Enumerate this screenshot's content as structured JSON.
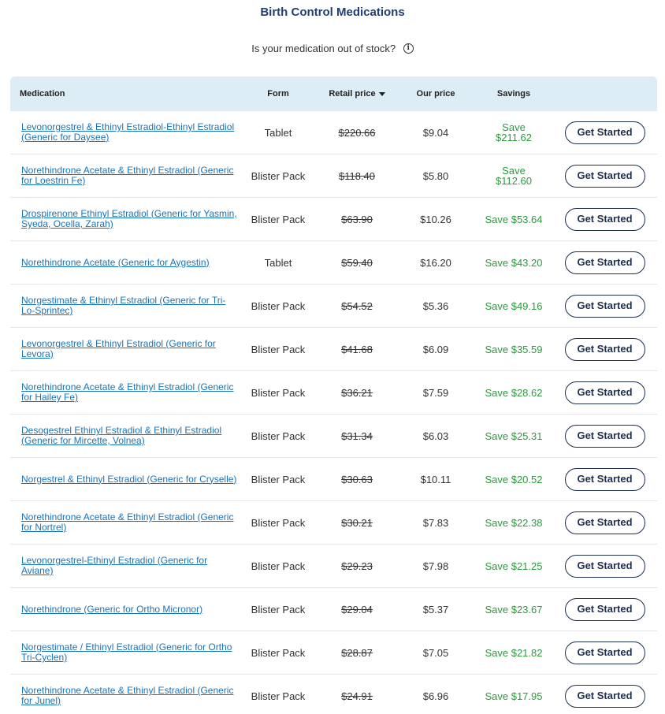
{
  "page": {
    "title": "Birth Control Medications",
    "stock_question": "Is your medication out of stock?",
    "info_icon": "info-icon"
  },
  "table": {
    "headers": {
      "medication": "Medication",
      "form": "Form",
      "retail_price": "Retail price",
      "our_price": "Our price",
      "savings": "Savings"
    },
    "sort_icon": "caret-down-icon",
    "rows": [
      {
        "name": "Levonorgestrel & Ethinyl Estradiol-Ethinyl Estradiol (Generic for Daysee)",
        "form": "Tablet",
        "retail": "$220.66",
        "our": "$9.04",
        "savings": "Save $211.62",
        "action": "Get Started"
      },
      {
        "name": "Norethindrone Acetate & Ethinyl Estradiol (Generic for Loestrin Fe)",
        "form": "Blister Pack",
        "retail": "$118.40",
        "our": "$5.80",
        "savings": "Save $112.60",
        "action": "Get Started"
      },
      {
        "name": "Drospirenone Ethinyl Estradiol (Generic for Yasmin, Syeda, Ocella, Zarah)",
        "form": "Blister Pack",
        "retail": "$63.90",
        "our": "$10.26",
        "savings": "Save $53.64",
        "action": "Get Started"
      },
      {
        "name": "Norethindrone Acetate (Generic for Aygestin)",
        "form": "Tablet",
        "retail": "$59.40",
        "our": "$16.20",
        "savings": "Save $43.20",
        "action": "Get Started"
      },
      {
        "name": "Norgestimate & Ethinyl Estradiol (Generic for Tri-Lo-Sprintec)",
        "form": "Blister Pack",
        "retail": "$54.52",
        "our": "$5.36",
        "savings": "Save $49.16",
        "action": "Get Started"
      },
      {
        "name": "Levonorgestrel & Ethinyl Estradiol (Generic for Levora)",
        "form": "Blister Pack",
        "retail": "$41.68",
        "our": "$6.09",
        "savings": "Save $35.59",
        "action": "Get Started"
      },
      {
        "name": "Norethindrone Acetate & Ethinyl Estradiol (Generic for Hailey Fe)",
        "form": "Blister Pack",
        "retail": "$36.21",
        "our": "$7.59",
        "savings": "Save $28.62",
        "action": "Get Started"
      },
      {
        "name": "Desogestrel Ethinyl Estradiol & Ethinyl Estradiol (Generic for Mircette, Volnea)",
        "form": "Blister Pack",
        "retail": "$31.34",
        "our": "$6.03",
        "savings": "Save $25.31",
        "action": "Get Started"
      },
      {
        "name": "Norgestrel & Ethinyl Estradiol (Generic for Cryselle)",
        "form": "Blister Pack",
        "retail": "$30.63",
        "our": "$10.11",
        "savings": "Save $20.52",
        "action": "Get Started"
      },
      {
        "name": "Norethindrone Acetate & Ethinyl Estradiol (Generic for Nortrel)",
        "form": "Blister Pack",
        "retail": "$30.21",
        "our": "$7.83",
        "savings": "Save $22.38",
        "action": "Get Started"
      },
      {
        "name": "Levonorgestrel-Ethinyl Estradiol (Generic for Aviane)",
        "form": "Blister Pack",
        "retail": "$29.23",
        "our": "$7.98",
        "savings": "Save $21.25",
        "action": "Get Started"
      },
      {
        "name": "Norethindrone (Generic for Ortho Micronor)",
        "form": "Blister Pack",
        "retail": "$29.04",
        "our": "$5.37",
        "savings": "Save $23.67",
        "action": "Get Started"
      },
      {
        "name": "Norgestimate / Ethinyl Estradiol (Generic for Ortho Tri-Cyclen)",
        "form": "Blister Pack",
        "retail": "$28.87",
        "our": "$7.05",
        "savings": "Save $21.82",
        "action": "Get Started"
      },
      {
        "name": "Norethindrone Acetate & Ethinyl Estradiol (Generic for Junel)",
        "form": "Blister Pack",
        "retail": "$24.91",
        "our": "$6.96",
        "savings": "Save $17.95",
        "action": "Get Started"
      }
    ]
  },
  "colors": {
    "title": "#1f3f73",
    "header_bg": "#dcedf6",
    "link": "#1a73b8",
    "savings": "#2e9a3f",
    "button_border": "#1f2f4f"
  }
}
